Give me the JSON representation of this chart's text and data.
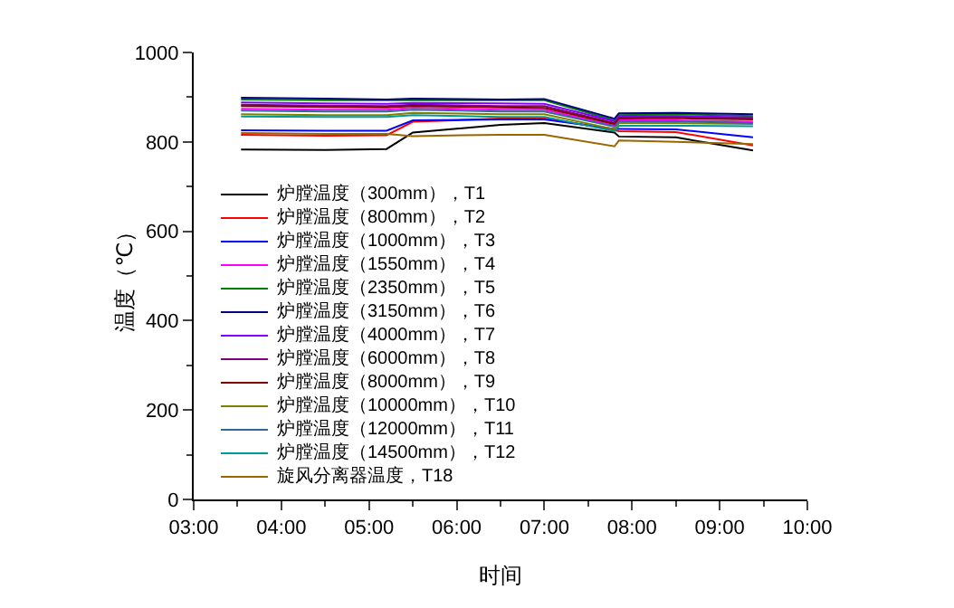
{
  "chart_data": {
    "type": "line",
    "xlabel": "时间",
    "ylabel": "温度（℃）",
    "x": [
      3.54,
      4.5,
      5.2,
      5.5,
      6.5,
      7.0,
      7.8,
      7.85,
      8.5,
      9.38
    ],
    "xlim": [
      3,
      10
    ],
    "xticks": [
      {
        "value": 3,
        "label": "03:00"
      },
      {
        "value": 4,
        "label": "04:00"
      },
      {
        "value": 5,
        "label": "05:00"
      },
      {
        "value": 6,
        "label": "06:00"
      },
      {
        "value": 7,
        "label": "07:00"
      },
      {
        "value": 8,
        "label": "08:00"
      },
      {
        "value": 9,
        "label": "09:00"
      },
      {
        "value": 10,
        "label": "10:00"
      }
    ],
    "ylim": [
      0,
      1000
    ],
    "yticks": [
      0,
      200,
      400,
      600,
      800,
      1000
    ],
    "grid": false,
    "legend": "bottom left",
    "marker": "none",
    "line_style": "solid",
    "series": [
      {
        "name": "炉膛温度（300mm），T1",
        "color": "#000000",
        "values": [
          783,
          782,
          784,
          821,
          838,
          842,
          821,
          812,
          810,
          781
        ]
      },
      {
        "name": "炉膛温度（800mm），T2",
        "color": "#ff0000",
        "values": [
          816,
          814,
          815,
          845,
          852,
          854,
          826,
          824,
          822,
          792
        ]
      },
      {
        "name": "炉膛温度（1000mm），T3",
        "color": "#0000ff",
        "values": [
          826,
          825,
          825,
          848,
          850,
          850,
          829,
          829,
          828,
          810
        ]
      },
      {
        "name": "炉膛温度（1550mm），T4",
        "color": "#ff00ff",
        "values": [
          874,
          872,
          872,
          876,
          872,
          872,
          836,
          848,
          848,
          845
        ]
      },
      {
        "name": "炉膛温度（2350mm），T5",
        "color": "#008000",
        "values": [
          895,
          893,
          893,
          893,
          893,
          893,
          848,
          860,
          862,
          858
        ]
      },
      {
        "name": "炉膛温度（3150mm），T6",
        "color": "#000080",
        "values": [
          899,
          897,
          895,
          897,
          895,
          896,
          852,
          864,
          865,
          862
        ]
      },
      {
        "name": "炉膛温度（4000mm），T7",
        "color": "#8000ff",
        "values": [
          888,
          886,
          885,
          887,
          886,
          885,
          846,
          858,
          858,
          855
        ]
      },
      {
        "name": "炉膛温度（6000mm），T8",
        "color": "#800080",
        "values": [
          883,
          881,
          880,
          883,
          880,
          880,
          842,
          854,
          855,
          852
        ]
      },
      {
        "name": "炉膛温度（8000mm），T9",
        "color": "#800000",
        "values": [
          880,
          878,
          877,
          880,
          877,
          876,
          840,
          852,
          853,
          850
        ]
      },
      {
        "name": "炉膛温度（10000mm），T10",
        "color": "#808000",
        "values": [
          862,
          860,
          860,
          865,
          862,
          862,
          828,
          842,
          842,
          840
        ]
      },
      {
        "name": "炉膛温度（12000mm），T11",
        "color": "#336699",
        "values": [
          870,
          868,
          868,
          872,
          868,
          868,
          834,
          846,
          846,
          842
        ]
      },
      {
        "name": "炉膛温度（14500mm），T12",
        "color": "#009999",
        "values": [
          857,
          856,
          856,
          860,
          856,
          856,
          824,
          836,
          836,
          835
        ]
      },
      {
        "name": "旋风分离器温度，T18",
        "color": "#996600",
        "values": [
          820,
          818,
          818,
          813,
          816,
          816,
          790,
          803,
          800,
          795
        ]
      }
    ]
  }
}
